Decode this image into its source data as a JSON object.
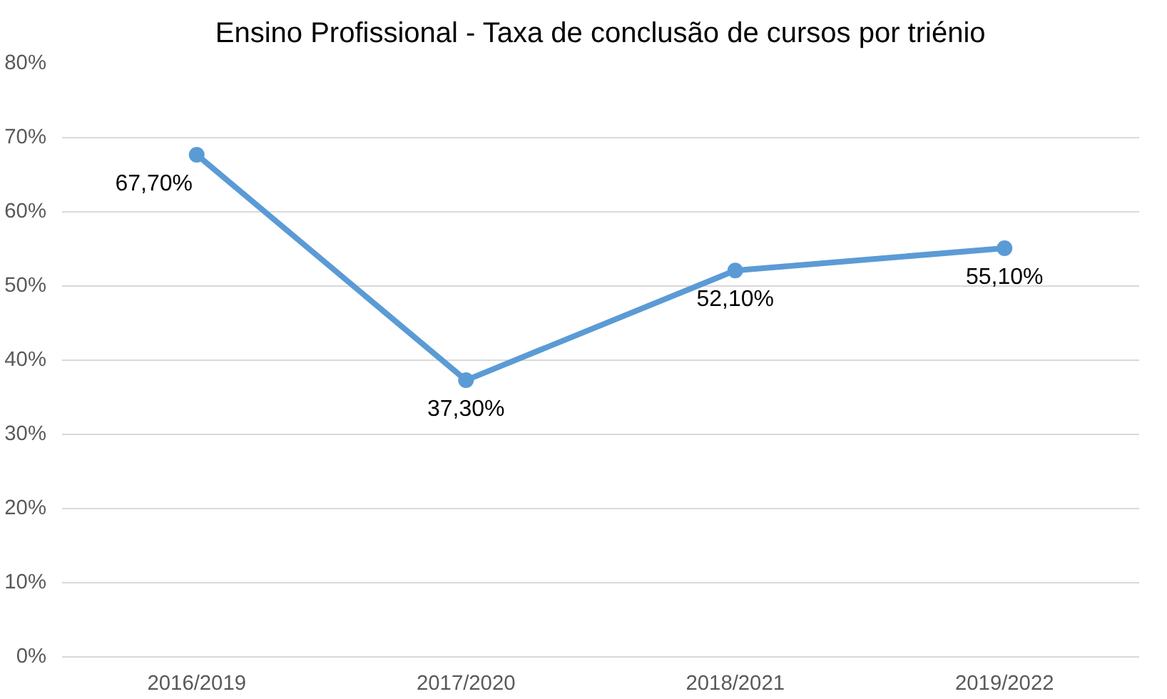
{
  "chart_data": {
    "type": "line",
    "title": "Ensino Profissional - Taxa de conclusão de cursos por triénio",
    "categories": [
      "2016/2019",
      "2017/2020",
      "2018/2021",
      "2019/2022"
    ],
    "series": [
      {
        "color": "#5b9bd5",
        "values": [
          67.7,
          37.3,
          52.1,
          55.1
        ],
        "value_labels": [
          "67,70%",
          "37,30%",
          "52,10%",
          "55,10%"
        ]
      }
    ],
    "ylim": [
      0,
      80
    ],
    "yticks": [
      {
        "value": 0,
        "label": "0%"
      },
      {
        "value": 10,
        "label": "10%"
      },
      {
        "value": 20,
        "label": "20%"
      },
      {
        "value": 30,
        "label": "30%"
      },
      {
        "value": 40,
        "label": "40%"
      },
      {
        "value": 50,
        "label": "50%"
      },
      {
        "value": 60,
        "label": "60%"
      },
      {
        "value": 70,
        "label": "70%"
      },
      {
        "value": 80,
        "label": "80%"
      }
    ],
    "grid": "y",
    "marker": "circle",
    "line_style": "solid"
  }
}
